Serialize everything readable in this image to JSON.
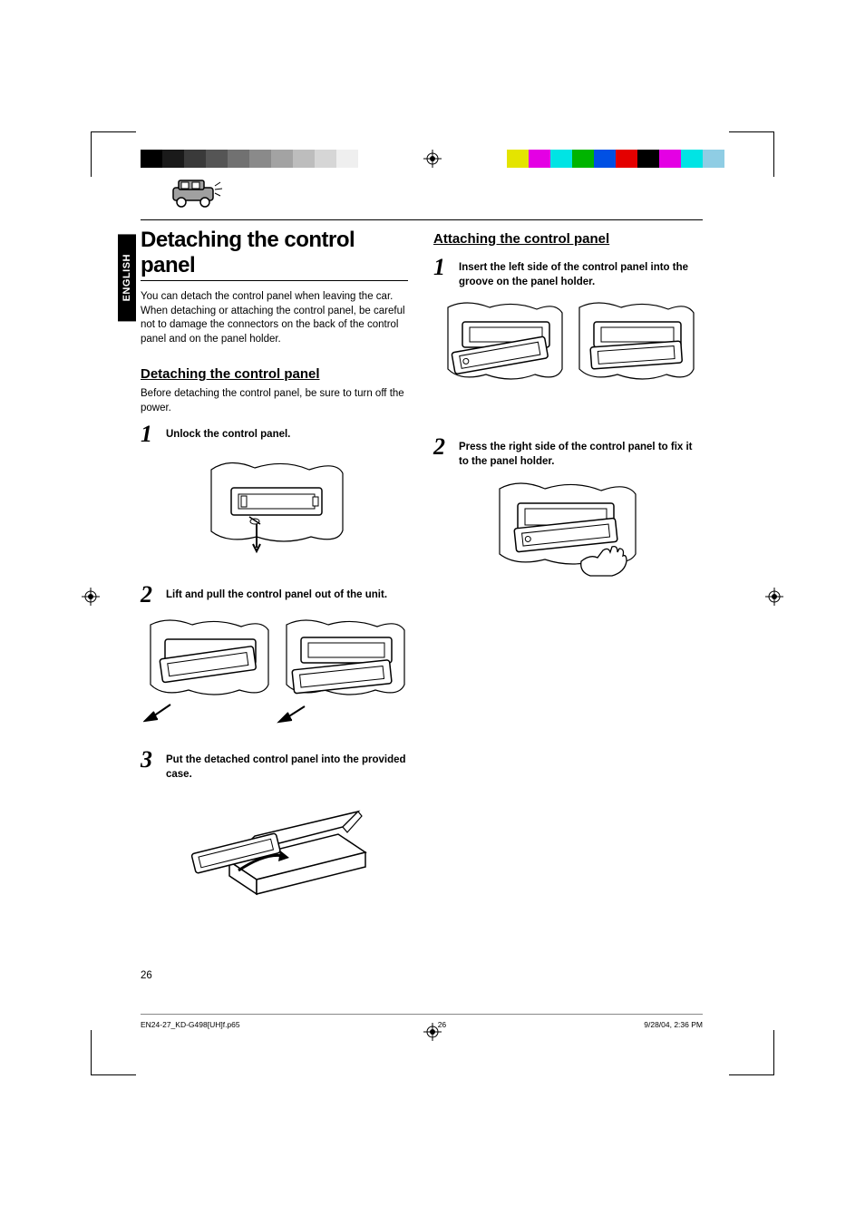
{
  "print_marks": {
    "color_bar_left": [
      "#000000",
      "#1a1a1a",
      "#3a3a3a",
      "#555555",
      "#717171",
      "#8a8a8a",
      "#a3a3a3",
      "#bdbdbd",
      "#d6d6d6",
      "#efefef"
    ],
    "color_bar_right": [
      "#e4e400",
      "#e400e4",
      "#00e4e4",
      "#00b400",
      "#0050e4",
      "#e40000",
      "#000000",
      "#e400e4",
      "#00e4e4",
      "#8fcde4"
    ]
  },
  "lang_tab": "ENGLISH",
  "car_icon": {
    "body_color": "#a0a0a0",
    "stroke": "#000000"
  },
  "main_title": "Detaching the control panel",
  "intro_text": "You can detach the control panel when leaving the car.\nWhen detaching or attaching the control panel, be careful not to damage the connectors on the back of the control panel and on the panel holder.",
  "detach_section": {
    "heading": "Detaching the control panel",
    "pretext": "Before detaching the control panel, be sure to turn off the power.",
    "steps": [
      {
        "num": "1",
        "text": "Unlock the control panel."
      },
      {
        "num": "2",
        "text": "Lift and pull the control panel out of the unit."
      },
      {
        "num": "3",
        "text": "Put the detached control panel into the provided case."
      }
    ]
  },
  "attach_section": {
    "heading": "Attaching the control panel",
    "steps": [
      {
        "num": "1",
        "text": "Insert the left side of the control panel into the groove on the panel holder."
      },
      {
        "num": "2",
        "text": "Press the right side of the control panel to fix it to the panel holder."
      }
    ]
  },
  "page_number": "26",
  "footer": {
    "file": "EN24-27_KD-G498[UH]f.p65",
    "page": "26",
    "date": "9/28/04, 2:36 PM"
  },
  "figure_style": {
    "stroke": "#000000",
    "fill": "#ffffff",
    "stroke_width": 1.2
  }
}
